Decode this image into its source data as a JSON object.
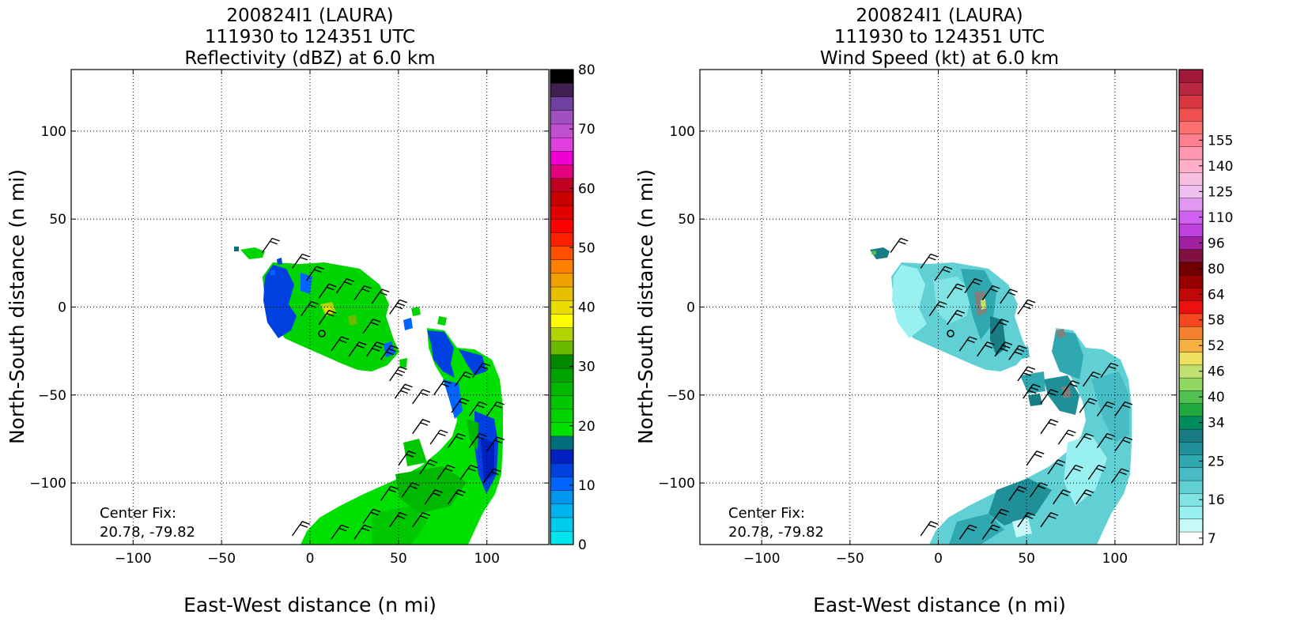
{
  "chart_data": [
    {
      "type": "heatmap",
      "title": [
        "200824I1 (LAURA)",
        "111930 to 124351 UTC",
        "Reflectivity (dBZ) at 6.0 km"
      ],
      "xlabel": "East-West distance (n mi)",
      "ylabel": "North-South distance (n mi)",
      "xlim": [
        -135,
        135
      ],
      "ylim": [
        -135,
        135
      ],
      "xticks": [
        -100,
        -50,
        0,
        50,
        100
      ],
      "yticks": [
        -100,
        -50,
        0,
        50,
        100
      ],
      "xtick_labels": [
        "−100",
        "−50",
        "0",
        "50",
        "100"
      ],
      "ytick_labels": [
        "−100",
        "−50",
        "0",
        "50",
        "100"
      ],
      "grid": true,
      "annotation": [
        "Center Fix:",
        "20.78, -79.82"
      ],
      "colorbar": {
        "min": 0,
        "max": 80,
        "step": 5,
        "tick_values": [
          0,
          10,
          20,
          30,
          40,
          50,
          60,
          70,
          80
        ],
        "tick_labels": [
          "0",
          "10",
          "20",
          "30",
          "40",
          "50",
          "60",
          "70",
          "80"
        ],
        "colors": [
          "#00e5ee",
          "#00cdee",
          "#00b2ee",
          "#0096ee",
          "#0064ff",
          "#0040e0",
          "#0020c0",
          "#006e7c",
          "#00e000",
          "#00d400",
          "#00c800",
          "#00b800",
          "#00a400",
          "#008800",
          "#6ab800",
          "#b0d400",
          "#ffff00",
          "#ecdc00",
          "#e8be00",
          "#f0a000",
          "#ff8000",
          "#ff5000",
          "#ff2000",
          "#ff0000",
          "#e00000",
          "#c80000",
          "#c00020",
          "#e00080",
          "#f000d0",
          "#e040e0",
          "#c050d0",
          "#a050c0",
          "#7040a0",
          "#402050",
          "#000000"
        ]
      },
      "center_marker": [
        8,
        -15
      ]
    },
    {
      "type": "heatmap",
      "title": [
        "200824I1 (LAURA)",
        "111930 to 124351 UTC",
        "Wind Speed (kt) at 6.0 km"
      ],
      "xlabel": "East-West distance (n mi)",
      "ylabel": "North-South distance (n mi)",
      "xlim": [
        -135,
        135
      ],
      "ylim": [
        -135,
        135
      ],
      "xticks": [
        -100,
        -50,
        0,
        50,
        100
      ],
      "yticks": [
        -100,
        -50,
        0,
        50,
        100
      ],
      "xtick_labels": [
        "−100",
        "−50",
        "0",
        "50",
        "100"
      ],
      "ytick_labels": [
        "−100",
        "−50",
        "0",
        "50",
        "100"
      ],
      "grid": true,
      "annotation": [
        "Center Fix:",
        "20.78, -79.82"
      ],
      "colorbar": {
        "tick_labels": [
          "7",
          "16",
          "25",
          "34",
          "40",
          "46",
          "52",
          "58",
          "64",
          "80",
          "96",
          "110",
          "125",
          "140",
          "155"
        ],
        "tick_bins": [
          0,
          3,
          6,
          9,
          11,
          13,
          15,
          17,
          19,
          21,
          23,
          25,
          27,
          29,
          31
        ],
        "colors": [
          "#ffffff",
          "#c8f8f8",
          "#98f0f0",
          "#80e4e4",
          "#60d0d4",
          "#48bcc4",
          "#30a8b0",
          "#209098",
          "#187c84",
          "#008c5c",
          "#20a840",
          "#50c050",
          "#90d860",
          "#c0e070",
          "#f0e060",
          "#f4b040",
          "#f48030",
          "#f44820",
          "#ee1010",
          "#c00808",
          "#980000",
          "#700000",
          "#801040",
          "#a020a0",
          "#c040e0",
          "#d060f0",
          "#e098f0",
          "#f0c0f0",
          "#f8c0e0",
          "#ffb0c8",
          "#ff98b0",
          "#ff8090",
          "#ff7070",
          "#f05050",
          "#d83840",
          "#b82840",
          "#a01838"
        ]
      },
      "center_marker": [
        8,
        -15
      ]
    }
  ]
}
